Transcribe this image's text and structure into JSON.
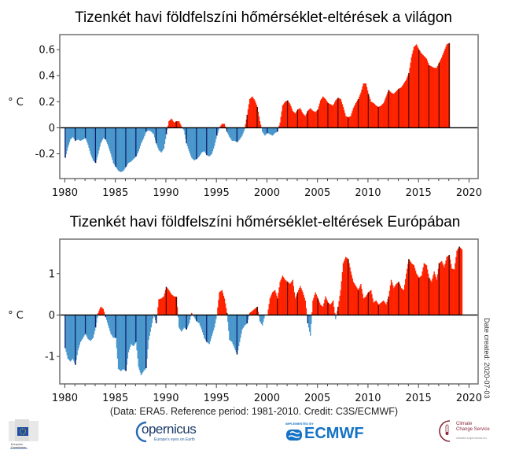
{
  "credit": "(Data: ERA5.  Reference period: 1981-2010.  Credit: C3S/ECMWF)",
  "date_created": "Date created: 2020-07-03",
  "logos": {
    "ec": {
      "name": "European Commission",
      "line1": "European",
      "line2": "Commission"
    },
    "copernicus": {
      "name": "opernicus",
      "tagline": "Europe's eyes on Earth"
    },
    "ecmwf": {
      "implemented_by": "IMPLEMENTED BY",
      "name": "ECMWF"
    },
    "c3s": {
      "line1": "Climate",
      "line2": "Change Service",
      "url": "climate.copernicus.eu"
    }
  },
  "colors": {
    "positive": "#ff2200",
    "negative": "#4a97cc",
    "positive_jan": "#5a0a00",
    "negative_jan": "#0a1f6e"
  },
  "chart_data": [
    {
      "type": "area",
      "title": "Tizenkét havi földfelszíni hőmérséklet-eltérések a világon",
      "xlabel": "",
      "ylabel": "° C",
      "xlim": [
        1979.5,
        2020.9
      ],
      "ylim": [
        -0.39,
        0.715
      ],
      "xticks": [
        1980,
        1985,
        1990,
        1995,
        2000,
        2005,
        2010,
        2015,
        2020
      ],
      "yticks": [
        -0.2,
        0,
        0.2,
        0.4,
        0.6
      ],
      "ytick_labels": [
        "-0.2",
        "0",
        "0.2",
        "0.4",
        "0.6"
      ],
      "grid": false,
      "x_start": 1980.0,
      "x_step": 0.25,
      "values": [
        -0.23,
        -0.15,
        -0.09,
        -0.07,
        -0.1,
        -0.09,
        -0.1,
        -0.09,
        -0.08,
        -0.13,
        -0.2,
        -0.25,
        -0.27,
        -0.2,
        -0.12,
        -0.08,
        -0.09,
        -0.14,
        -0.2,
        -0.27,
        -0.3,
        -0.33,
        -0.34,
        -0.33,
        -0.3,
        -0.27,
        -0.26,
        -0.24,
        -0.22,
        -0.18,
        -0.12,
        -0.08,
        -0.03,
        -0.02,
        -0.03,
        -0.05,
        -0.12,
        -0.17,
        -0.19,
        -0.16,
        -0.05,
        0.05,
        0.07,
        0.04,
        0.05,
        0.05,
        0.01,
        -0.02,
        -0.12,
        -0.18,
        -0.23,
        -0.25,
        -0.24,
        -0.22,
        -0.19,
        -0.18,
        -0.21,
        -0.22,
        -0.2,
        -0.14,
        -0.06,
        0.0,
        0.03,
        0.03,
        -0.03,
        -0.07,
        -0.1,
        -0.1,
        -0.11,
        -0.09,
        -0.06,
        -0.01,
        0.1,
        0.22,
        0.24,
        0.21,
        0.16,
        0.05,
        -0.03,
        -0.06,
        -0.04,
        -0.05,
        -0.06,
        -0.04,
        -0.03,
        0.04,
        0.17,
        0.2,
        0.21,
        0.18,
        0.13,
        0.11,
        0.14,
        0.15,
        0.11,
        0.09,
        0.13,
        0.15,
        0.13,
        0.12,
        0.14,
        0.21,
        0.24,
        0.22,
        0.19,
        0.18,
        0.17,
        0.21,
        0.23,
        0.22,
        0.16,
        0.09,
        0.08,
        0.09,
        0.15,
        0.19,
        0.22,
        0.27,
        0.34,
        0.34,
        0.26,
        0.2,
        0.19,
        0.17,
        0.16,
        0.17,
        0.19,
        0.24,
        0.29,
        0.27,
        0.26,
        0.28,
        0.3,
        0.31,
        0.34,
        0.37,
        0.42,
        0.54,
        0.62,
        0.64,
        0.6,
        0.57,
        0.55,
        0.53,
        0.48,
        0.47,
        0.46,
        0.46,
        0.5,
        0.54,
        0.59,
        0.64,
        0.65
      ]
    },
    {
      "type": "area",
      "title": "Tizenkét havi földfelszíni hőmérséklet-eltérések Európában",
      "xlabel": "",
      "ylabel": "° C",
      "xlim": [
        1979.5,
        2020.9
      ],
      "ylim": [
        -1.66,
        1.83
      ],
      "xticks": [
        1980,
        1985,
        1990,
        1995,
        2000,
        2005,
        2010,
        2015,
        2020
      ],
      "yticks": [
        -1,
        0,
        1
      ],
      "ytick_labels": [
        "-1",
        "0",
        "1"
      ],
      "grid": false,
      "x_start": 1980.0,
      "x_step": 0.25,
      "values": [
        -0.8,
        -1.05,
        -1.12,
        -1.05,
        -1.2,
        -0.85,
        -0.65,
        -0.55,
        -0.45,
        -0.58,
        -0.62,
        -0.55,
        -0.3,
        0.05,
        0.2,
        0.15,
        -0.05,
        -0.25,
        -0.45,
        -0.55,
        -0.55,
        -1.3,
        -1.35,
        -1.3,
        -1.35,
        -0.9,
        -0.7,
        -0.75,
        -0.65,
        -1.25,
        -1.45,
        -1.35,
        -1.28,
        -0.6,
        -0.3,
        0.02,
        -0.2,
        0.38,
        0.4,
        0.45,
        0.68,
        0.6,
        0.5,
        0.45,
        0.44,
        -0.3,
        -0.4,
        -0.3,
        -0.35,
        -0.2,
        0.05,
        -0.05,
        -0.15,
        -0.2,
        -0.35,
        -0.55,
        -0.65,
        -0.7,
        -0.5,
        -0.3,
        0.0,
        0.55,
        0.6,
        0.4,
        0.05,
        -0.6,
        -0.65,
        -0.8,
        -0.95,
        -0.65,
        -0.35,
        -0.25,
        -0.2,
        0.05,
        0.1,
        0.15,
        0.2,
        -0.15,
        -0.25,
        0.0,
        0.0,
        0.4,
        0.55,
        0.6,
        0.4,
        0.8,
        0.95,
        0.85,
        0.8,
        0.75,
        0.85,
        0.4,
        0.55,
        0.7,
        0.55,
        0.35,
        -0.2,
        -0.5,
        0.35,
        0.55,
        0.4,
        0.25,
        0.2,
        0.45,
        0.3,
        0.25,
        0.35,
        -0.1,
        0.2,
        0.6,
        1.25,
        1.4,
        1.35,
        1.05,
        0.8,
        0.7,
        0.6,
        0.75,
        0.4,
        0.45,
        0.55,
        0.6,
        0.3,
        0.35,
        0.25,
        0.3,
        0.35,
        0.25,
        0.45,
        0.85,
        0.65,
        0.75,
        0.8,
        0.65,
        0.6,
        1.0,
        1.35,
        1.25,
        1.2,
        1.0,
        0.9,
        0.95,
        1.25,
        1.2,
        0.9,
        0.8,
        1.05,
        0.85,
        1.25,
        1.3,
        1.15,
        1.4,
        1.45,
        1.12,
        1.1,
        1.55,
        1.65,
        1.58
      ]
    }
  ]
}
